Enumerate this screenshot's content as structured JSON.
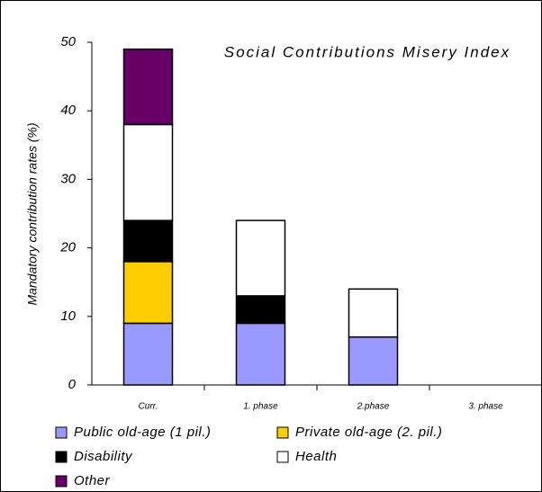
{
  "chart_data": {
    "type": "stacked_bar",
    "title": "Social Contributions Misery Index",
    "y_label": "Mandatory contribution rates (%)",
    "categories": [
      "Curr.",
      "1. phase",
      "2.phase",
      "3. phase"
    ],
    "series": [
      {
        "name": "Public old-age (1 pil.)",
        "color": "#9999ff",
        "values": [
          9,
          9,
          7,
          0
        ]
      },
      {
        "name": "Private old-age (2. pil.)",
        "color": "#ffcc00",
        "values": [
          9,
          0,
          0,
          0
        ]
      },
      {
        "name": "Disability",
        "color": "#000000",
        "values": [
          6,
          4,
          0,
          0
        ]
      },
      {
        "name": "Health",
        "color": "#ffffff",
        "values": [
          14,
          11,
          7,
          0
        ]
      },
      {
        "name": "Other",
        "color": "#660066",
        "values": [
          11,
          0,
          0,
          0
        ]
      }
    ],
    "ylim": [
      0,
      50
    ],
    "yticks": [
      0,
      10,
      20,
      30,
      40,
      50
    ],
    "grid": false
  }
}
